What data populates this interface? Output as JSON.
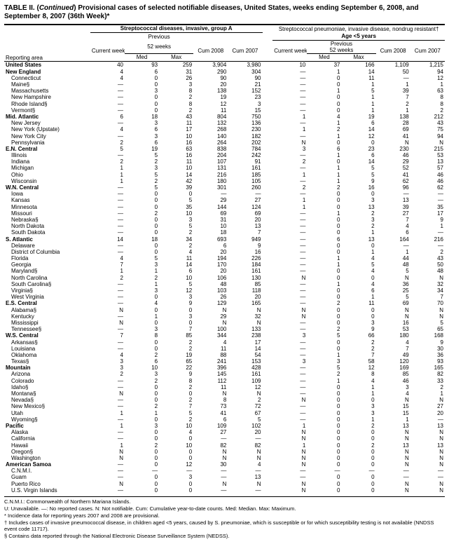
{
  "title_prefix": "TABLE II. (",
  "title_italic": "Continued",
  "title_rest": ") Provisional cases of selected notifiable diseases, United States, weeks ending September 6, 2008, and September 8, 2007 (36th Week)*",
  "disease1": "Streptococcal diseases, invasive, group A",
  "disease2_line1": "Streptococcal pneumoniae, invasive disease, nondrug resistant†",
  "disease2_line2": "Age <5 years",
  "prev_label": "Previous",
  "weeks_label": "52 weeks",
  "cols": {
    "area": "Reporting area",
    "current": "Current week",
    "med": "Med",
    "max": "Max",
    "cum08": "Cum 2008",
    "cum07": "Cum 2007"
  },
  "rows": [
    {
      "section": true,
      "area": "United States",
      "d": [
        "40",
        "93",
        "259",
        "3,904",
        "3,980",
        "10",
        "37",
        "166",
        "1,109",
        "1,215"
      ]
    },
    {
      "section": true,
      "area": "New England",
      "d": [
        "4",
        "6",
        "31",
        "290",
        "304",
        "—",
        "1",
        "14",
        "50",
        "94"
      ]
    },
    {
      "area": "Connecticut",
      "d": [
        "4",
        "0",
        "26",
        "90",
        "90",
        "—",
        "0",
        "11",
        "—",
        "12"
      ]
    },
    {
      "area": "Maine§",
      "d": [
        "—",
        "0",
        "3",
        "20",
        "21",
        "—",
        "0",
        "1",
        "1",
        "1"
      ]
    },
    {
      "area": "Massachusetts",
      "d": [
        "—",
        "3",
        "8",
        "138",
        "152",
        "—",
        "1",
        "5",
        "39",
        "63"
      ]
    },
    {
      "area": "New Hampshire",
      "d": [
        "—",
        "0",
        "2",
        "19",
        "23",
        "—",
        "0",
        "1",
        "7",
        "8"
      ]
    },
    {
      "area": "Rhode Island§",
      "d": [
        "—",
        "0",
        "8",
        "12",
        "3",
        "—",
        "0",
        "1",
        "2",
        "8"
      ]
    },
    {
      "area": "Vermont§",
      "d": [
        "—",
        "0",
        "2",
        "11",
        "15",
        "—",
        "0",
        "1",
        "1",
        "2"
      ]
    },
    {
      "section": true,
      "area": "Mid. Atlantic",
      "d": [
        "6",
        "18",
        "43",
        "804",
        "750",
        "1",
        "4",
        "19",
        "138",
        "212"
      ]
    },
    {
      "area": "New Jersey",
      "d": [
        "—",
        "3",
        "11",
        "132",
        "136",
        "—",
        "1",
        "6",
        "28",
        "43"
      ]
    },
    {
      "area": "New York (Upstate)",
      "d": [
        "4",
        "6",
        "17",
        "268",
        "230",
        "1",
        "2",
        "14",
        "69",
        "75"
      ]
    },
    {
      "area": "New York City",
      "d": [
        "—",
        "3",
        "10",
        "140",
        "182",
        "—",
        "1",
        "12",
        "41",
        "94"
      ]
    },
    {
      "area": "Pennsylvania",
      "d": [
        "2",
        "6",
        "16",
        "264",
        "202",
        "N",
        "0",
        "0",
        "N",
        "N"
      ]
    },
    {
      "section": true,
      "area": "E.N. Central",
      "d": [
        "5",
        "19",
        "63",
        "838",
        "784",
        "3",
        "6",
        "23",
        "230",
        "215"
      ]
    },
    {
      "area": "Illinois",
      "d": [
        "—",
        "5",
        "16",
        "204",
        "242",
        "—",
        "1",
        "6",
        "46",
        "53"
      ]
    },
    {
      "area": "Indiana",
      "d": [
        "2",
        "2",
        "11",
        "107",
        "91",
        "2",
        "0",
        "14",
        "29",
        "13"
      ]
    },
    {
      "area": "Michigan",
      "d": [
        "1",
        "3",
        "10",
        "131",
        "161",
        "—",
        "1",
        "5",
        "52",
        "57"
      ]
    },
    {
      "area": "Ohio",
      "d": [
        "1",
        "5",
        "14",
        "216",
        "185",
        "1",
        "1",
        "5",
        "41",
        "46"
      ]
    },
    {
      "area": "Wisconsin",
      "d": [
        "1",
        "2",
        "42",
        "180",
        "105",
        "—",
        "1",
        "9",
        "62",
        "46"
      ]
    },
    {
      "section": true,
      "area": "W.N. Central",
      "d": [
        "—",
        "5",
        "39",
        "301",
        "260",
        "2",
        "2",
        "16",
        "96",
        "62"
      ]
    },
    {
      "area": "Iowa",
      "d": [
        "—",
        "0",
        "0",
        "—",
        "—",
        "—",
        "0",
        "0",
        "—",
        "—"
      ]
    },
    {
      "area": "Kansas",
      "d": [
        "—",
        "0",
        "5",
        "29",
        "27",
        "1",
        "0",
        "3",
        "13",
        "—"
      ]
    },
    {
      "area": "Minnesota",
      "d": [
        "—",
        "0",
        "35",
        "144",
        "124",
        "1",
        "0",
        "13",
        "39",
        "35"
      ]
    },
    {
      "area": "Missouri",
      "d": [
        "—",
        "2",
        "10",
        "69",
        "69",
        "—",
        "1",
        "2",
        "27",
        "17"
      ]
    },
    {
      "area": "Nebraska§",
      "d": [
        "—",
        "0",
        "3",
        "31",
        "20",
        "—",
        "0",
        "3",
        "7",
        "9"
      ]
    },
    {
      "area": "North Dakota",
      "d": [
        "—",
        "0",
        "5",
        "10",
        "13",
        "—",
        "0",
        "2",
        "4",
        "1"
      ]
    },
    {
      "area": "South Dakota",
      "d": [
        "—",
        "0",
        "2",
        "18",
        "7",
        "—",
        "0",
        "1",
        "6",
        "—"
      ]
    },
    {
      "section": true,
      "area": "S. Atlantic",
      "d": [
        "14",
        "18",
        "34",
        "693",
        "949",
        "—",
        "6",
        "13",
        "164",
        "216"
      ]
    },
    {
      "area": "Delaware",
      "d": [
        "—",
        "0",
        "2",
        "6",
        "9",
        "—",
        "0",
        "0",
        "—",
        "—"
      ]
    },
    {
      "area": "District of Columbia",
      "d": [
        "—",
        "0",
        "4",
        "20",
        "16",
        "—",
        "0",
        "1",
        "1",
        "2"
      ]
    },
    {
      "area": "Florida",
      "d": [
        "4",
        "5",
        "11",
        "194",
        "226",
        "—",
        "1",
        "4",
        "44",
        "43"
      ]
    },
    {
      "area": "Georgia",
      "d": [
        "7",
        "3",
        "14",
        "170",
        "184",
        "—",
        "1",
        "5",
        "48",
        "50"
      ]
    },
    {
      "area": "Maryland§",
      "d": [
        "1",
        "1",
        "6",
        "20",
        "161",
        "—",
        "0",
        "4",
        "5",
        "48"
      ]
    },
    {
      "area": "North Carolina",
      "d": [
        "2",
        "2",
        "10",
        "106",
        "130",
        "N",
        "0",
        "0",
        "N",
        "N"
      ]
    },
    {
      "area": "South Carolina§",
      "d": [
        "—",
        "1",
        "5",
        "48",
        "85",
        "—",
        "1",
        "4",
        "36",
        "32"
      ]
    },
    {
      "area": "Virginia§",
      "d": [
        "—",
        "3",
        "12",
        "103",
        "118",
        "—",
        "0",
        "6",
        "25",
        "34"
      ]
    },
    {
      "area": "West Virginia",
      "d": [
        "—",
        "0",
        "3",
        "26",
        "20",
        "—",
        "0",
        "1",
        "5",
        "7"
      ]
    },
    {
      "section": true,
      "area": "E.S. Central",
      "d": [
        "—",
        "4",
        "9",
        "129",
        "165",
        "—",
        "2",
        "11",
        "69",
        "70"
      ]
    },
    {
      "area": "Alabama§",
      "d": [
        "N",
        "0",
        "0",
        "N",
        "N",
        "N",
        "0",
        "0",
        "N",
        "N"
      ]
    },
    {
      "area": "Kentucky",
      "d": [
        "—",
        "1",
        "3",
        "29",
        "32",
        "N",
        "0",
        "0",
        "N",
        "N"
      ]
    },
    {
      "area": "Mississippi",
      "d": [
        "N",
        "0",
        "0",
        "N",
        "N",
        "—",
        "0",
        "3",
        "16",
        "5"
      ]
    },
    {
      "area": "Tennessee§",
      "d": [
        "—",
        "3",
        "7",
        "100",
        "133",
        "—",
        "2",
        "9",
        "53",
        "65"
      ]
    },
    {
      "section": true,
      "area": "W.S. Central",
      "d": [
        "7",
        "8",
        "85",
        "344",
        "238",
        "3",
        "5",
        "66",
        "180",
        "168"
      ]
    },
    {
      "area": "Arkansas§",
      "d": [
        "—",
        "0",
        "2",
        "4",
        "17",
        "—",
        "0",
        "2",
        "4",
        "9"
      ]
    },
    {
      "area": "Louisiana",
      "d": [
        "—",
        "0",
        "2",
        "11",
        "14",
        "—",
        "0",
        "2",
        "7",
        "30"
      ]
    },
    {
      "area": "Oklahoma",
      "d": [
        "4",
        "2",
        "19",
        "88",
        "54",
        "—",
        "1",
        "7",
        "49",
        "36"
      ]
    },
    {
      "area": "Texas§",
      "d": [
        "3",
        "6",
        "65",
        "241",
        "153",
        "3",
        "3",
        "58",
        "120",
        "93"
      ]
    },
    {
      "section": true,
      "area": "Mountain",
      "d": [
        "3",
        "10",
        "22",
        "396",
        "428",
        "—",
        "5",
        "12",
        "169",
        "165"
      ]
    },
    {
      "area": "Arizona",
      "d": [
        "2",
        "3",
        "9",
        "145",
        "161",
        "—",
        "2",
        "8",
        "85",
        "82"
      ]
    },
    {
      "area": "Colorado",
      "d": [
        "—",
        "2",
        "8",
        "112",
        "109",
        "—",
        "1",
        "4",
        "46",
        "33"
      ]
    },
    {
      "area": "Idaho§",
      "d": [
        "—",
        "0",
        "2",
        "11",
        "12",
        "—",
        "0",
        "1",
        "3",
        "2"
      ]
    },
    {
      "area": "Montana§",
      "d": [
        "N",
        "0",
        "0",
        "N",
        "N",
        "—",
        "0",
        "1",
        "4",
        "1"
      ]
    },
    {
      "area": "Nevada§",
      "d": [
        "—",
        "0",
        "2",
        "8",
        "2",
        "N",
        "0",
        "0",
        "N",
        "N"
      ]
    },
    {
      "area": "New Mexico§",
      "d": [
        "—",
        "2",
        "7",
        "73",
        "72",
        "—",
        "0",
        "3",
        "15",
        "27"
      ]
    },
    {
      "area": "Utah",
      "d": [
        "1",
        "1",
        "5",
        "41",
        "67",
        "—",
        "0",
        "3",
        "15",
        "20"
      ]
    },
    {
      "area": "Wyoming§",
      "d": [
        "—",
        "0",
        "2",
        "6",
        "5",
        "—",
        "0",
        "1",
        "1",
        "—"
      ]
    },
    {
      "section": true,
      "area": "Pacific",
      "d": [
        "1",
        "3",
        "10",
        "109",
        "102",
        "1",
        "0",
        "2",
        "13",
        "13"
      ]
    },
    {
      "area": "Alaska",
      "d": [
        "—",
        "0",
        "4",
        "27",
        "20",
        "N",
        "0",
        "0",
        "N",
        "N"
      ]
    },
    {
      "area": "California",
      "d": [
        "—",
        "0",
        "0",
        "—",
        "—",
        "N",
        "0",
        "0",
        "N",
        "N"
      ]
    },
    {
      "area": "Hawaii",
      "d": [
        "1",
        "2",
        "10",
        "82",
        "82",
        "1",
        "0",
        "2",
        "13",
        "13"
      ]
    },
    {
      "area": "Oregon§",
      "d": [
        "N",
        "0",
        "0",
        "N",
        "N",
        "N",
        "0",
        "0",
        "N",
        "N"
      ]
    },
    {
      "area": "Washington",
      "d": [
        "N",
        "0",
        "0",
        "N",
        "N",
        "N",
        "0",
        "0",
        "N",
        "N"
      ]
    },
    {
      "section": true,
      "area": "American Samoa",
      "d": [
        "—",
        "0",
        "12",
        "30",
        "4",
        "N",
        "0",
        "0",
        "N",
        "N"
      ]
    },
    {
      "area": "C.N.M.I.",
      "d": [
        "—",
        "—",
        "—",
        "—",
        "—",
        "—",
        "—",
        "—",
        "—",
        "—"
      ]
    },
    {
      "area": "Guam",
      "d": [
        "—",
        "0",
        "3",
        "—",
        "13",
        "—",
        "0",
        "0",
        "—",
        "—"
      ]
    },
    {
      "area": "Puerto Rico",
      "d": [
        "N",
        "0",
        "0",
        "N",
        "N",
        "N",
        "0",
        "0",
        "N",
        "N"
      ]
    },
    {
      "area": "U.S. Virgin Islands",
      "d": [
        "—",
        "0",
        "0",
        "—",
        "—",
        "N",
        "0",
        "0",
        "N",
        "N"
      ]
    }
  ],
  "footnotes": [
    "C.N.M.I.: Commonwealth of Northern Mariana Islands.",
    "U: Unavailable.   —: No reported cases.   N: Not notifiable.   Cum: Cumulative year-to-date counts.   Med: Median.   Max: Maximum.",
    "* Incidence data for reporting years 2007 and 2008 are provisional.",
    "† Includes cases of invasive pneumococcal disease, in children aged <5 years, caused by S. pneumoniae, which is susceptible or for which susceptibility testing is not available (NNDSS event code 11717).",
    "§ Contains data reported through the National Electronic Disease Surveillance System (NEDSS)."
  ]
}
